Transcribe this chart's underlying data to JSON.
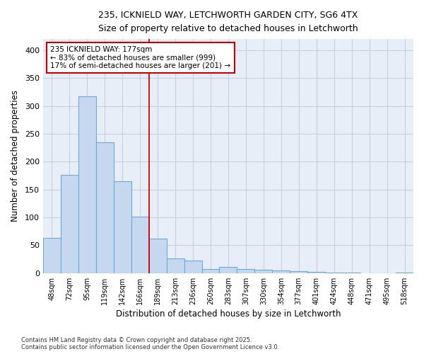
{
  "title1": "235, ICKNIELD WAY, LETCHWORTH GARDEN CITY, SG6 4TX",
  "title2": "Size of property relative to detached houses in Letchworth",
  "xlabel": "Distribution of detached houses by size in Letchworth",
  "ylabel": "Number of detached properties",
  "categories": [
    "48sqm",
    "72sqm",
    "95sqm",
    "119sqm",
    "142sqm",
    "166sqm",
    "189sqm",
    "213sqm",
    "236sqm",
    "260sqm",
    "283sqm",
    "307sqm",
    "330sqm",
    "354sqm",
    "377sqm",
    "401sqm",
    "424sqm",
    "448sqm",
    "471sqm",
    "495sqm",
    "518sqm"
  ],
  "values": [
    63,
    176,
    317,
    235,
    165,
    102,
    62,
    26,
    22,
    8,
    11,
    7,
    6,
    5,
    4,
    2,
    1,
    1,
    0,
    0,
    1
  ],
  "bar_color": "#c5d8f0",
  "bar_edge_color": "#6aaad4",
  "annotation_text": "235 ICKNIELD WAY: 177sqm\n← 83% of detached houses are smaller (999)\n17% of semi-detached houses are larger (201) →",
  "annotation_box_color": "#ffffff",
  "annotation_box_edge": "#cc0000",
  "vline_color": "#cc0000",
  "vline_x": 5.5,
  "ylim": [
    0,
    420
  ],
  "yticks": [
    0,
    50,
    100,
    150,
    200,
    250,
    300,
    350,
    400
  ],
  "grid_color": "#c8d0e0",
  "plot_bg_color": "#e8eef8",
  "fig_bg_color": "#ffffff",
  "footer1": "Contains HM Land Registry data © Crown copyright and database right 2025.",
  "footer2": "Contains public sector information licensed under the Open Government Licence v3.0."
}
